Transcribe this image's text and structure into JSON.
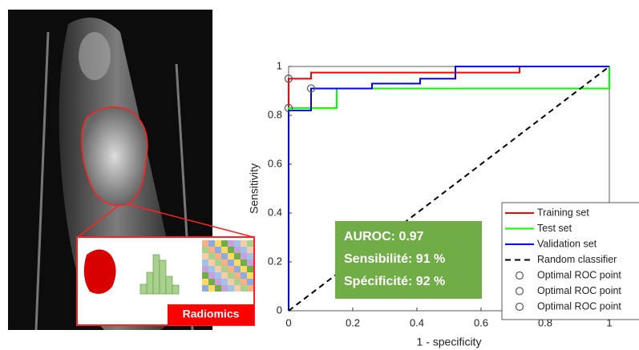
{
  "inset_label": "Radiomics",
  "chart_data": {
    "type": "line",
    "xlabel": "1 - specificity",
    "ylabel": "Sensitivity",
    "xlim": [
      0,
      1
    ],
    "ylim": [
      0,
      1
    ],
    "xticks": [
      0,
      0.2,
      0.4,
      0.6,
      0.8,
      1
    ],
    "yticks": [
      0,
      0.2,
      0.4,
      0.6,
      0.8,
      1
    ],
    "grid": false,
    "legend": "lower-right",
    "annotations": [
      "AUROC: 0.97",
      "Sensibilité: 91 %",
      "Spécificité: 92 %"
    ],
    "series": [
      {
        "name": "Training set",
        "color": "#ff0000",
        "x": [
          0,
          0,
          0.07,
          0.07,
          0.72,
          0.72,
          1
        ],
        "values": [
          0,
          0.95,
          0.95,
          0.975,
          0.975,
          1,
          1
        ]
      },
      {
        "name": "Test set",
        "color": "#00ff00",
        "x": [
          0,
          0,
          0.15,
          0.15,
          1,
          1
        ],
        "values": [
          0,
          0.83,
          0.83,
          0.91,
          0.91,
          1
        ]
      },
      {
        "name": "Validation set",
        "color": "#0000ff",
        "x": [
          0,
          0,
          0.07,
          0.07,
          0.26,
          0.26,
          0.41,
          0.41,
          0.52,
          0.52,
          1
        ],
        "values": [
          0,
          0.82,
          0.82,
          0.91,
          0.91,
          0.93,
          0.93,
          0.95,
          0.95,
          1,
          1
        ]
      },
      {
        "name": "Random classifier",
        "color": "#000000",
        "dash": true,
        "x": [
          0,
          1
        ],
        "values": [
          0,
          1
        ]
      },
      {
        "name": "Optimal ROC point",
        "color": "#555555",
        "marker": "o",
        "x": [
          0
        ],
        "values": [
          0.95
        ]
      },
      {
        "name": "Optimal ROC point",
        "color": "#555555",
        "marker": "o",
        "x": [
          0
        ],
        "values": [
          0.83
        ]
      },
      {
        "name": "Optimal ROC point",
        "color": "#555555",
        "marker": "o",
        "x": [
          0.07
        ],
        "values": [
          0.91
        ]
      }
    ]
  }
}
